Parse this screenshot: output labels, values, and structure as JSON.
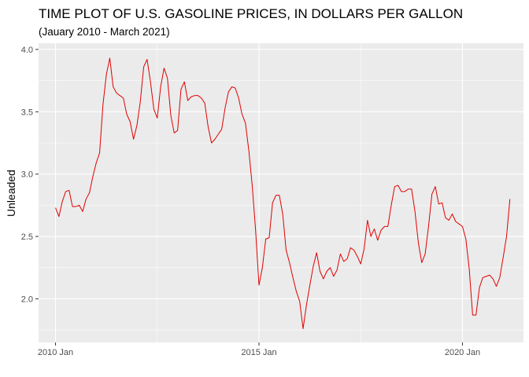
{
  "chart_data": {
    "type": "line",
    "title": "TIME PLOT OF U.S. GASOLINE PRICES, IN DOLLARS PER GALLON",
    "subtitle": "(Jauary 2010 - March 2021)",
    "xlabel": "",
    "ylabel": "Unleaded",
    "x_tick_labels": [
      "2010 Jan",
      "2015 Jan",
      "2020 Jan"
    ],
    "y_tick_labels": [
      "2.0",
      "2.5",
      "3.0",
      "3.5",
      "4.0"
    ],
    "ylim": [
      1.65,
      4.05
    ],
    "xlim": [
      "2009-08",
      "2021-07"
    ],
    "grid": true,
    "legend": "none",
    "line_color": "#e00000",
    "panel_color": "#ebebeb",
    "series": [
      {
        "x": [
          "2010-01",
          "2010-02",
          "2010-03",
          "2010-04",
          "2010-05",
          "2010-06",
          "2010-07",
          "2010-08",
          "2010-09",
          "2010-10",
          "2010-11",
          "2010-12",
          "2011-01",
          "2011-02",
          "2011-03",
          "2011-04",
          "2011-05",
          "2011-06",
          "2011-07",
          "2011-08",
          "2011-09",
          "2011-10",
          "2011-11",
          "2011-12",
          "2012-01",
          "2012-02",
          "2012-03",
          "2012-04",
          "2012-05",
          "2012-06",
          "2012-07",
          "2012-08",
          "2012-09",
          "2012-10",
          "2012-11",
          "2012-12",
          "2013-01",
          "2013-02",
          "2013-03",
          "2013-04",
          "2013-05",
          "2013-06",
          "2013-07",
          "2013-08",
          "2013-09",
          "2013-10",
          "2013-11",
          "2013-12",
          "2014-01",
          "2014-02",
          "2014-03",
          "2014-04",
          "2014-05",
          "2014-06",
          "2014-07",
          "2014-08",
          "2014-09",
          "2014-10",
          "2014-11",
          "2014-12",
          "2015-01",
          "2015-02",
          "2015-03",
          "2015-04",
          "2015-05",
          "2015-06",
          "2015-07",
          "2015-08",
          "2015-09",
          "2015-10",
          "2015-11",
          "2015-12",
          "2016-01",
          "2016-02",
          "2016-03",
          "2016-04",
          "2016-05",
          "2016-06",
          "2016-07",
          "2016-08",
          "2016-09",
          "2016-10",
          "2016-11",
          "2016-12",
          "2017-01",
          "2017-02",
          "2017-03",
          "2017-04",
          "2017-05",
          "2017-06",
          "2017-07",
          "2017-08",
          "2017-09",
          "2017-10",
          "2017-11",
          "2017-12",
          "2018-01",
          "2018-02",
          "2018-03",
          "2018-04",
          "2018-05",
          "2018-06",
          "2018-07",
          "2018-08",
          "2018-09",
          "2018-10",
          "2018-11",
          "2018-12",
          "2019-01",
          "2019-02",
          "2019-03",
          "2019-04",
          "2019-05",
          "2019-06",
          "2019-07",
          "2019-08",
          "2019-09",
          "2019-10",
          "2019-11",
          "2019-12",
          "2020-01",
          "2020-02",
          "2020-03",
          "2020-04",
          "2020-05",
          "2020-06",
          "2020-07",
          "2020-08",
          "2020-09",
          "2020-10",
          "2020-11",
          "2020-12",
          "2021-01",
          "2021-02",
          "2021-03"
        ],
        "values": [
          2.73,
          2.66,
          2.78,
          2.86,
          2.87,
          2.74,
          2.74,
          2.75,
          2.7,
          2.8,
          2.85,
          2.98,
          3.09,
          3.17,
          3.56,
          3.8,
          3.93,
          3.7,
          3.65,
          3.63,
          3.61,
          3.48,
          3.42,
          3.28,
          3.39,
          3.58,
          3.86,
          3.92,
          3.74,
          3.52,
          3.45,
          3.7,
          3.85,
          3.77,
          3.47,
          3.33,
          3.35,
          3.68,
          3.74,
          3.59,
          3.62,
          3.63,
          3.63,
          3.61,
          3.57,
          3.38,
          3.25,
          3.28,
          3.32,
          3.36,
          3.53,
          3.66,
          3.7,
          3.69,
          3.61,
          3.48,
          3.41,
          3.19,
          2.91,
          2.55,
          2.11,
          2.25,
          2.48,
          2.49,
          2.77,
          2.83,
          2.83,
          2.68,
          2.39,
          2.29,
          2.17,
          2.06,
          1.98,
          1.76,
          1.95,
          2.11,
          2.26,
          2.37,
          2.22,
          2.16,
          2.22,
          2.25,
          2.18,
          2.23,
          2.36,
          2.3,
          2.32,
          2.41,
          2.39,
          2.34,
          2.28,
          2.4,
          2.63,
          2.5,
          2.56,
          2.47,
          2.55,
          2.58,
          2.58,
          2.75,
          2.9,
          2.91,
          2.86,
          2.86,
          2.88,
          2.88,
          2.7,
          2.45,
          2.29,
          2.36,
          2.58,
          2.84,
          2.9,
          2.76,
          2.77,
          2.65,
          2.63,
          2.68,
          2.62,
          2.6,
          2.58,
          2.48,
          2.24,
          1.87,
          1.87,
          2.09,
          2.17,
          2.18,
          2.19,
          2.16,
          2.1,
          2.17,
          2.33,
          2.5,
          2.8
        ]
      }
    ]
  }
}
